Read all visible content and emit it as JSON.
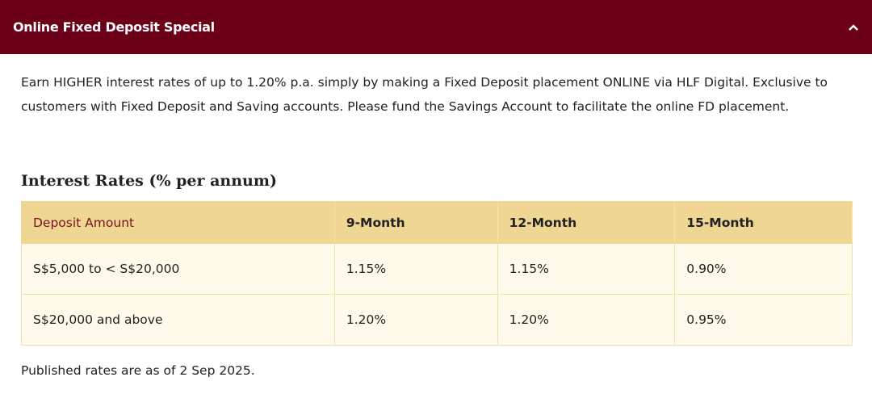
{
  "header": {
    "title": "Online Fixed Deposit Special"
  },
  "intro": "Earn HIGHER interest rates of up to 1.20% p.a. simply by making a Fixed Deposit placement ONLINE via HLF Digital. Exclusive to customers with Fixed Deposit and Saving accounts. Please fund the Savings Account to facilitate the online FD placement.",
  "table": {
    "title": "Interest Rates (% per annum)",
    "columns": [
      "Deposit Amount",
      "9-Month",
      "12-Month",
      "15-Month"
    ],
    "rows": [
      [
        "S$5,000 to < S$20,000",
        "1.15%",
        "1.15%",
        "0.90%"
      ],
      [
        "S$20,000 and above",
        "1.20%",
        "1.20%",
        "0.95%"
      ]
    ]
  },
  "footnote": "Published rates are as of 2 Sep 2025."
}
